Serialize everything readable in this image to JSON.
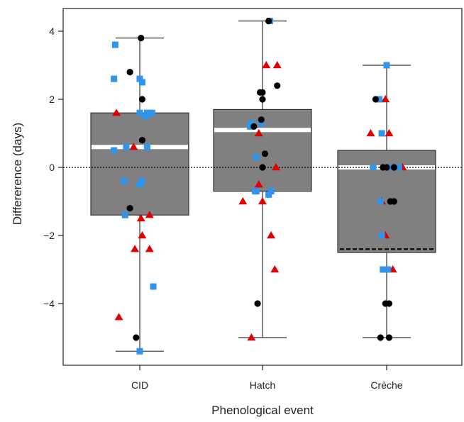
{
  "chart_data": {
    "type": "box",
    "title": "",
    "xlabel": "Phenological event",
    "ylabel": "Differerence (days)",
    "ylim": [
      -5.6,
      4.6
    ],
    "yticks": [
      -4,
      -2,
      0,
      2,
      4
    ],
    "tick_labels": {
      "-4": "−4",
      "-2": "−2",
      "0": "0",
      "2": "2",
      "4": "4"
    },
    "reference_line": {
      "y": 0,
      "style": "dotted"
    },
    "grid": false,
    "legend": "none",
    "colors": {
      "box_fill": "#808080",
      "median": "#ffffff",
      "whisker": "#333333",
      "black_point": "#000000",
      "blue_point": "#2e94ec",
      "red_point": "#e00000"
    },
    "categories": [
      "CID",
      "Hatch",
      "Crèche"
    ],
    "boxes": [
      {
        "category": "CID",
        "q1": -1.4,
        "median": 0.6,
        "q3": 1.6,
        "whisker_low": -5.4,
        "whisker_high": 3.8
      },
      {
        "category": "Hatch",
        "q1": -0.7,
        "median": 1.1,
        "q3": 1.7,
        "whisker_low": -5.0,
        "whisker_high": 4.3
      },
      {
        "category": "Crèche",
        "q1": -2.5,
        "median": 0.0,
        "q3": 0.5,
        "whisker_low": -5.0,
        "whisker_high": 3.0,
        "extra_line": {
          "y": -2.4,
          "style": "dashed"
        }
      }
    ],
    "points": {
      "CID": {
        "black": [
          {
            "dx": 0.01,
            "y": 3.8
          },
          {
            "dx": -0.08,
            "y": 2.8
          },
          {
            "dx": 0.02,
            "y": 2.0
          },
          {
            "dx": 0.02,
            "y": 0.8
          },
          {
            "dx": -0.08,
            "y": -1.2
          },
          {
            "dx": -0.03,
            "y": -5.0
          }
        ],
        "blue": [
          {
            "dx": -0.2,
            "y": 3.6
          },
          {
            "dx": -0.21,
            "y": 2.6
          },
          {
            "dx": 0.0,
            "y": 2.6
          },
          {
            "dx": 0.02,
            "y": 2.5
          },
          {
            "dx": 0.0,
            "y": 1.6
          },
          {
            "dx": 0.06,
            "y": 1.6
          },
          {
            "dx": 0.1,
            "y": 1.6
          },
          {
            "dx": 0.05,
            "y": 1.5
          },
          {
            "dx": -0.11,
            "y": 0.6
          },
          {
            "dx": 0.06,
            "y": 0.6
          },
          {
            "dx": -0.21,
            "y": 0.5
          },
          {
            "dx": -0.13,
            "y": -0.4
          },
          {
            "dx": 0.02,
            "y": -0.4
          },
          {
            "dx": 0.0,
            "y": -0.5
          },
          {
            "dx": -0.12,
            "y": -1.4
          },
          {
            "dx": 0.11,
            "y": -3.5
          },
          {
            "dx": 0.0,
            "y": -5.4
          }
        ],
        "red": [
          {
            "dx": -0.19,
            "y": 1.6
          },
          {
            "dx": -0.05,
            "y": 0.6
          },
          {
            "dx": 0.08,
            "y": -1.4
          },
          {
            "dx": 0.01,
            "y": -1.5
          },
          {
            "dx": 0.02,
            "y": -2.0
          },
          {
            "dx": -0.04,
            "y": -2.4
          },
          {
            "dx": 0.08,
            "y": -2.4
          },
          {
            "dx": -0.17,
            "y": -4.4
          }
        ]
      },
      "Hatch": {
        "black": [
          {
            "dx": 0.05,
            "y": 4.3
          },
          {
            "dx": 0.12,
            "y": 2.4
          },
          {
            "dx": -0.02,
            "y": 2.2
          },
          {
            "dx": 0.0,
            "y": 2.2
          },
          {
            "dx": 0.0,
            "y": 2.0
          },
          {
            "dx": -0.01,
            "y": 1.4
          },
          {
            "dx": -0.07,
            "y": 1.2
          },
          {
            "dx": 0.02,
            "y": 0.4
          },
          {
            "dx": 0.0,
            "y": 0.0
          },
          {
            "dx": -0.04,
            "y": -4.0
          }
        ],
        "blue": [
          {
            "dx": 0.06,
            "y": 4.3
          },
          {
            "dx": -0.1,
            "y": 1.2
          },
          {
            "dx": -0.09,
            "y": 1.3
          },
          {
            "dx": -0.01,
            "y": 1.3
          },
          {
            "dx": -0.05,
            "y": 0.3
          },
          {
            "dx": -0.06,
            "y": -0.7
          },
          {
            "dx": -0.05,
            "y": -0.7
          },
          {
            "dx": 0.07,
            "y": -0.7
          },
          {
            "dx": 0.05,
            "y": -0.8
          }
        ],
        "red": [
          {
            "dx": 0.03,
            "y": 3.0
          },
          {
            "dx": 0.12,
            "y": 3.0
          },
          {
            "dx": -0.03,
            "y": 1.0
          },
          {
            "dx": -0.03,
            "y": -0.5
          },
          {
            "dx": 0.11,
            "y": 0.0
          },
          {
            "dx": 0.0,
            "y": -1.0
          },
          {
            "dx": -0.16,
            "y": -1.0
          },
          {
            "dx": 0.07,
            "y": -2.0
          },
          {
            "dx": 0.1,
            "y": -3.0
          },
          {
            "dx": -0.09,
            "y": -5.0
          }
        ]
      },
      "Crèche": {
        "black": [
          {
            "dx": -0.09,
            "y": 2.0
          },
          {
            "dx": 0.0,
            "y": 0.0
          },
          {
            "dx": -0.03,
            "y": 0.0
          },
          {
            "dx": 0.06,
            "y": 0.0
          },
          {
            "dx": 0.03,
            "y": -1.0
          },
          {
            "dx": 0.06,
            "y": -1.0
          },
          {
            "dx": -0.01,
            "y": -4.0
          },
          {
            "dx": 0.02,
            "y": -4.0
          },
          {
            "dx": -0.05,
            "y": -5.0
          },
          {
            "dx": 0.02,
            "y": -5.0
          }
        ],
        "blue": [
          {
            "dx": 0.0,
            "y": 3.0
          },
          {
            "dx": -0.06,
            "y": 2.0
          },
          {
            "dx": -0.04,
            "y": 1.0
          },
          {
            "dx": -0.11,
            "y": 0.0
          },
          {
            "dx": 0.03,
            "y": 0.0
          },
          {
            "dx": 0.1,
            "y": 0.0
          },
          {
            "dx": -0.05,
            "y": -1.0
          },
          {
            "dx": -0.04,
            "y": -2.0
          },
          {
            "dx": -0.03,
            "y": -3.0
          },
          {
            "dx": 0.01,
            "y": -3.0
          }
        ],
        "red": [
          {
            "dx": -0.01,
            "y": 2.0
          },
          {
            "dx": -0.13,
            "y": 1.0
          },
          {
            "dx": 0.02,
            "y": 1.0
          },
          {
            "dx": 0.13,
            "y": 0.0
          },
          {
            "dx": -0.04,
            "y": -1.0
          },
          {
            "dx": -0.01,
            "y": -2.0
          },
          {
            "dx": 0.05,
            "y": -3.0
          }
        ]
      }
    }
  }
}
